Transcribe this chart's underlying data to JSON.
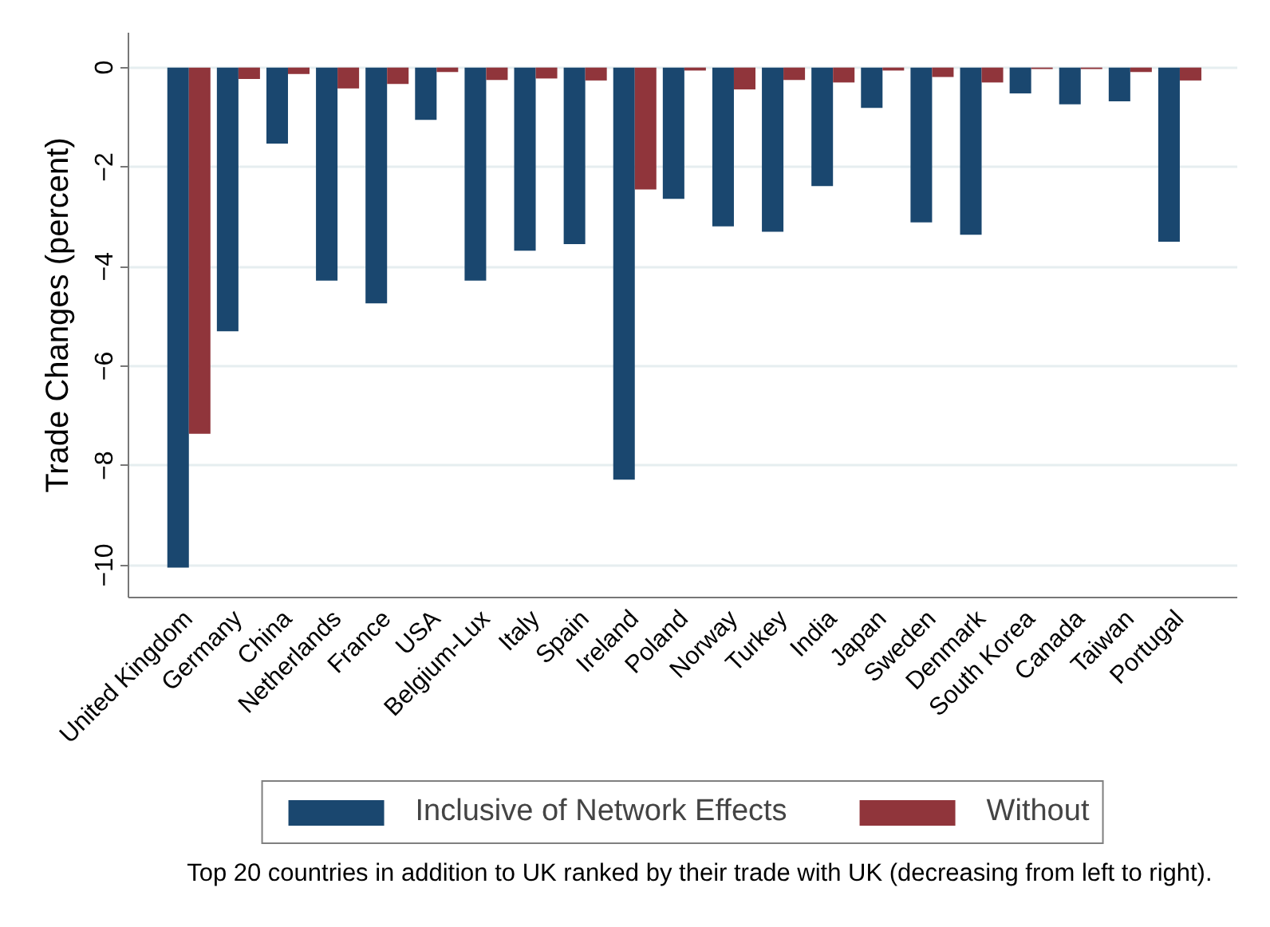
{
  "chart_data": {
    "type": "bar",
    "categories": [
      "United Kingdom",
      "Germany",
      "China",
      "Netherlands",
      "France",
      "USA",
      "Belgium-Lux",
      "Italy",
      "Spain",
      "Ireland",
      "Poland",
      "Norway",
      "Turkey",
      "India",
      "Japan",
      "Sweden",
      "Denmark",
      "South Korea",
      "Canada",
      "Taiwan",
      "Portugal"
    ],
    "series": [
      {
        "name": "Inclusive of Network Effects",
        "color": "#1a476f",
        "values": [
          -10.05,
          -5.3,
          -1.53,
          -4.28,
          -4.74,
          -1.05,
          -4.28,
          -3.68,
          -3.55,
          -8.28,
          -2.64,
          -3.19,
          -3.3,
          -2.38,
          -0.81,
          -3.11,
          -3.36,
          -0.52,
          -0.74,
          -0.68,
          -3.5
        ]
      },
      {
        "name": "Without",
        "color": "#90353b",
        "values": [
          -7.36,
          -0.23,
          -0.13,
          -0.42,
          -0.33,
          -0.09,
          -0.25,
          -0.22,
          -0.26,
          -2.45,
          -0.06,
          -0.44,
          -0.25,
          -0.3,
          -0.06,
          -0.19,
          -0.3,
          -0.03,
          -0.03,
          -0.09,
          -0.26
        ]
      }
    ],
    "ylabel": "Trade Changes (percent)",
    "ylim": [
      -10.65,
      0.7
    ],
    "yticks": [
      -10,
      -8,
      -6,
      -4,
      -2,
      0
    ],
    "grid": "y",
    "legend": "bottom",
    "annotations": [
      "Top 20 countries in addition to UK ranked by their trade with UK (decreasing from left to right)."
    ]
  }
}
